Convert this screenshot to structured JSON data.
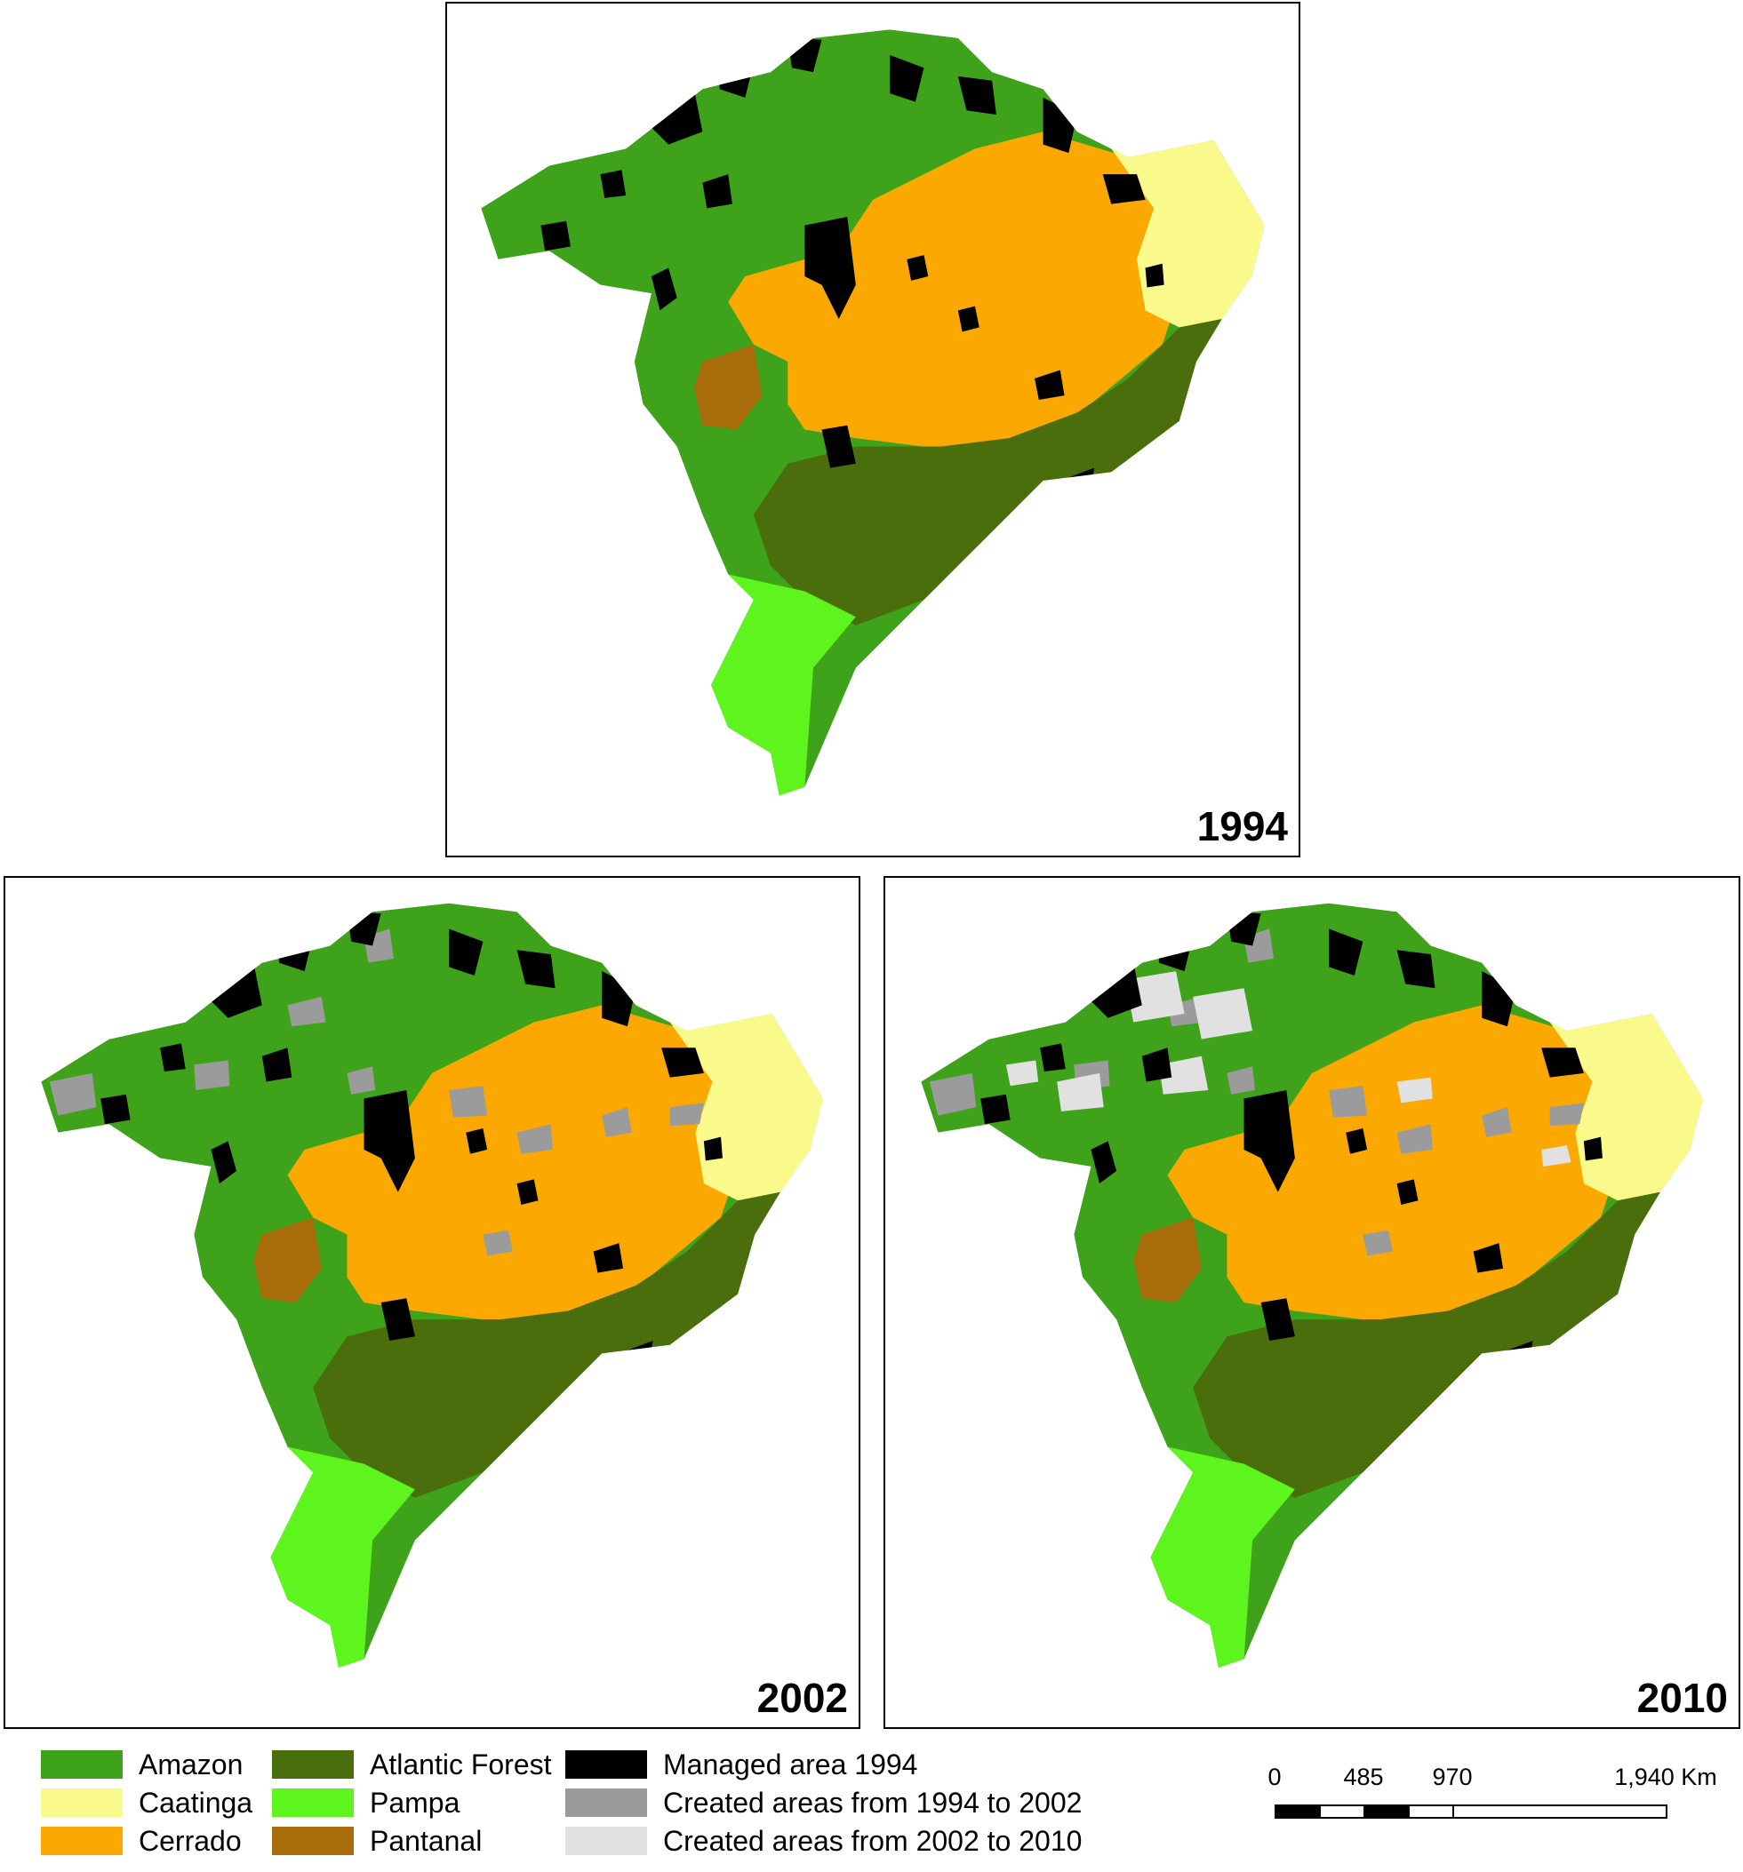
{
  "panels": [
    {
      "year": "1994"
    },
    {
      "year": "2002"
    },
    {
      "year": "2010"
    }
  ],
  "legend": {
    "biomes": [
      {
        "label": "Amazon",
        "color": "#3ea31a"
      },
      {
        "label": "Caatinga",
        "color": "#fafa8c"
      },
      {
        "label": "Cerrado",
        "color": "#fba800"
      },
      {
        "label": "Atlantic Forest",
        "color": "#4a6e0b"
      },
      {
        "label": "Pampa",
        "color": "#5ef51e"
      },
      {
        "label": "Pantanal",
        "color": "#a86c0a"
      }
    ],
    "areas": [
      {
        "label": "Managed area 1994",
        "color": "#000000"
      },
      {
        "label": "Created areas from 1994 to 2002",
        "color": "#9b9b9b"
      },
      {
        "label": "Created areas from 2002 to 2010",
        "color": "#e1e1e1"
      }
    ]
  },
  "scale": {
    "ticks": [
      "0",
      "485",
      "970",
      "1,940 Km"
    ]
  }
}
